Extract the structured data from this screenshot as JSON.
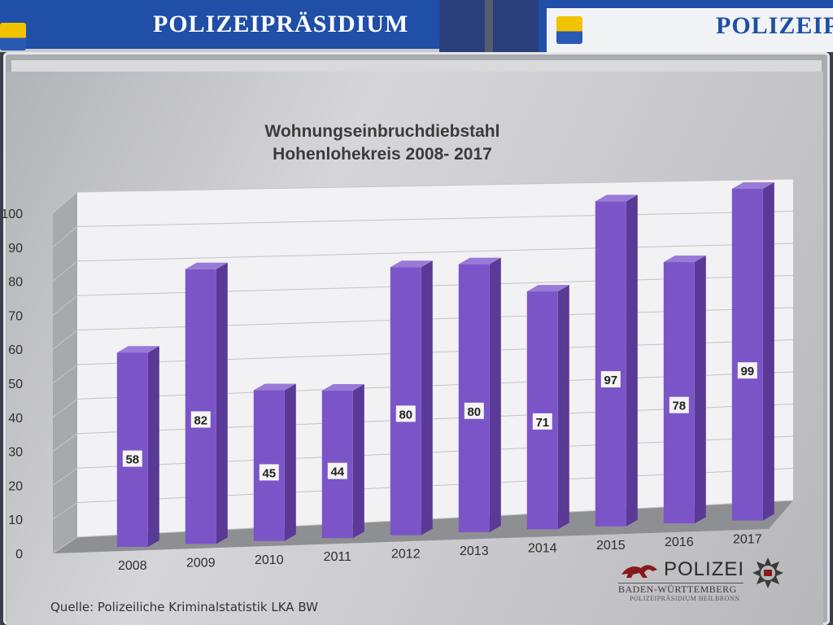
{
  "header": {
    "left_banner": "POLIZEIPRÄSIDIUM",
    "right_banner": "POLIZEIP"
  },
  "chart_data": {
    "type": "bar",
    "title": "Wohnungseinbruchdiebstahl\nHohenlohekreis 2008- 2017",
    "title_line1": "Wohnungseinbruchdiebstahl",
    "title_line2": "Hohenlohekreis 2008- 2017",
    "categories": [
      "2008",
      "2009",
      "2010",
      "2011",
      "2012",
      "2013",
      "2014",
      "2015",
      "2016",
      "2017"
    ],
    "values": [
      58,
      82,
      45,
      44,
      80,
      80,
      71,
      97,
      78,
      99
    ],
    "ylim": [
      0,
      100
    ],
    "yticks": [
      "0",
      "10",
      "20",
      "30",
      "40",
      "50",
      "60",
      "70",
      "80",
      "90",
      "100"
    ],
    "xlabel": "",
    "ylabel": "",
    "grid": true,
    "bar_color": "#7b55c8",
    "bar_side_color": "#5a3a96",
    "bar_top_color": "#9a7ad8"
  },
  "footer": {
    "source": "Quelle: Polizeiliche Kriminalstatistik LKA BW",
    "logo_word": "POLIZEI",
    "logo_sub1": "BADEN-WÜRTTEMBERG",
    "logo_sub2": "POLIZEIPRÄSIDIUM HEILBRONN"
  }
}
